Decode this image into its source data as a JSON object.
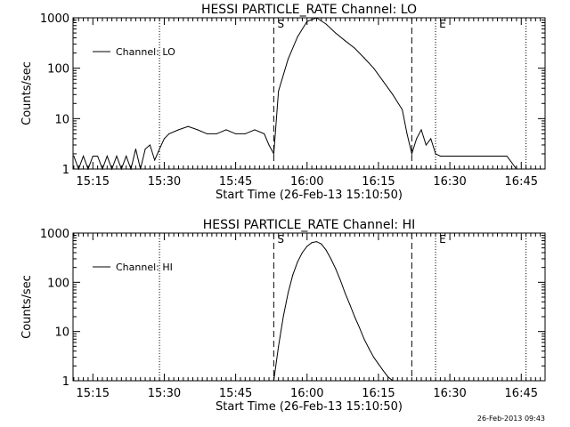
{
  "timestamp": "26-Feb-2013 09:43",
  "chart_data": [
    {
      "type": "line",
      "title": "HESSI PARTICLE_RATE Channel: LO",
      "xlabel": "Start Time (26-Feb-13 15:10:50)",
      "ylabel": "Counts/sec",
      "yscale": "log",
      "ylim": [
        1,
        1000
      ],
      "xlim": [
        "15:10:50",
        "16:50:00"
      ],
      "x_ticks": [
        "15:15",
        "15:30",
        "15:45",
        "16:00",
        "16:15",
        "16:30",
        "16:45"
      ],
      "y_ticks": [
        "1",
        "10",
        "100",
        "1000"
      ],
      "legend": {
        "position": "top-left",
        "entries": [
          "Channel: LO"
        ]
      },
      "vlines": [
        {
          "x": "15:29",
          "style": "dotted",
          "label": ""
        },
        {
          "x": "15:53",
          "style": "dashed",
          "label": "S"
        },
        {
          "x": "16:22",
          "style": "dashed",
          "label": ""
        },
        {
          "x": "16:27",
          "style": "dotted",
          "label": "E"
        },
        {
          "x": "16:46",
          "style": "dotted",
          "label": ""
        }
      ],
      "series": [
        {
          "name": "Channel: LO",
          "x": [
            "15:10:50",
            "15:11",
            "15:12",
            "15:13",
            "15:14",
            "15:15",
            "15:16",
            "15:17",
            "15:18",
            "15:19",
            "15:20",
            "15:21",
            "15:22",
            "15:23",
            "15:24",
            "15:25",
            "15:26",
            "15:27",
            "15:28",
            "15:29",
            "15:30",
            "15:31",
            "15:33",
            "15:35",
            "15:37",
            "15:39",
            "15:41",
            "15:43",
            "15:45",
            "15:47",
            "15:49",
            "15:51",
            "15:52",
            "15:53",
            "15:54",
            "15:56",
            "15:58",
            "16:00",
            "16:02",
            "16:04",
            "16:06",
            "16:08",
            "16:10",
            "16:12",
            "16:14",
            "16:16",
            "16:18",
            "16:20",
            "16:21",
            "16:22",
            "16:23",
            "16:24",
            "16:25",
            "16:26",
            "16:27",
            "16:28",
            "16:30",
            "16:32",
            "16:34",
            "16:36",
            "16:38",
            "16:40",
            "16:42",
            "16:44",
            "16:45"
          ],
          "values": [
            1.8,
            1.8,
            1,
            1.8,
            1,
            1.8,
            1.8,
            1,
            1.8,
            1,
            1.8,
            1,
            1.8,
            1,
            2.5,
            1,
            2.5,
            3,
            1.5,
            2.5,
            4,
            5,
            6,
            7,
            6,
            5,
            5,
            6,
            5,
            5,
            6,
            5,
            3,
            2,
            35,
            150,
            420,
            850,
            1000,
            750,
            500,
            350,
            250,
            160,
            100,
            55,
            30,
            15,
            5,
            2,
            4,
            6,
            3,
            4,
            2,
            1.8,
            1.8,
            1.8,
            1.8,
            1.8,
            1.8,
            1.8,
            1.8,
            1,
            1
          ]
        }
      ]
    },
    {
      "type": "line",
      "title": "HESSI PARTICLE_RATE Channel: HI",
      "xlabel": "Start Time (26-Feb-13 15:10:50)",
      "ylabel": "Counts/sec",
      "yscale": "log",
      "ylim": [
        1,
        1000
      ],
      "xlim": [
        "15:10:50",
        "16:50:00"
      ],
      "x_ticks": [
        "15:15",
        "15:30",
        "15:45",
        "16:00",
        "16:15",
        "16:30",
        "16:45"
      ],
      "y_ticks": [
        "1",
        "10",
        "100",
        "1000"
      ],
      "legend": {
        "position": "top-left",
        "entries": [
          "Channel: HI"
        ]
      },
      "vlines": [
        {
          "x": "15:29",
          "style": "dotted",
          "label": ""
        },
        {
          "x": "15:53",
          "style": "dashed",
          "label": "S"
        },
        {
          "x": "16:22",
          "style": "dashed",
          "label": ""
        },
        {
          "x": "16:27",
          "style": "dotted",
          "label": "E"
        },
        {
          "x": "16:46",
          "style": "dotted",
          "label": ""
        }
      ],
      "series": [
        {
          "name": "Channel: HI",
          "x": [
            "15:53",
            "15:54",
            "15:55",
            "15:56",
            "15:57",
            "15:58",
            "15:59",
            "16:00",
            "16:01",
            "16:02",
            "16:03",
            "16:04",
            "16:05",
            "16:06",
            "16:07",
            "16:08",
            "16:09",
            "16:10",
            "16:11",
            "16:12",
            "16:13",
            "16:14",
            "16:15",
            "16:16",
            "16:17",
            "16:18"
          ],
          "values": [
            1,
            5,
            20,
            60,
            140,
            260,
            400,
            540,
            640,
            670,
            600,
            450,
            300,
            190,
            110,
            60,
            35,
            20,
            12,
            7,
            4.5,
            3,
            2.2,
            1.6,
            1.2,
            1
          ]
        }
      ]
    }
  ]
}
